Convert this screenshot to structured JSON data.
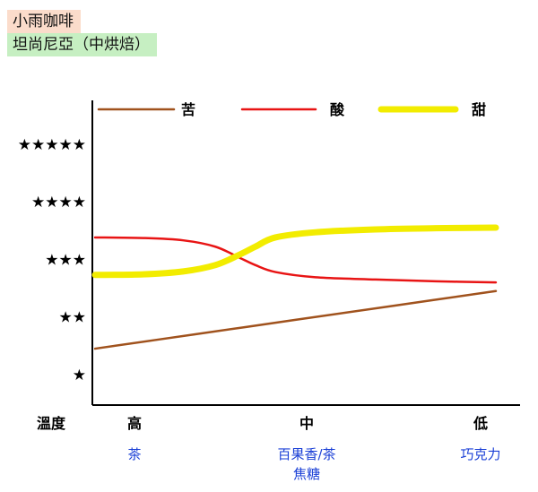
{
  "header": {
    "tag1": {
      "text": "小雨咖啡",
      "bg": "#fbdccb"
    },
    "tag2": {
      "text": "坦尚尼亞（中烘焙）",
      "bg": "#c6efc2"
    }
  },
  "chart_data": {
    "type": "line",
    "title": "",
    "xlabel": "溫度",
    "ylabel": "",
    "categories": [
      "高",
      "中",
      "低"
    ],
    "category_notes": [
      [
        "茶"
      ],
      [
        "百果香/茶",
        "焦糖"
      ],
      [
        "巧克力"
      ]
    ],
    "y_tick_labels": [
      "★",
      "★★",
      "★★★",
      "★★★★",
      "★★★★★"
    ],
    "ylim": [
      0.5,
      5.6
    ],
    "xlim": [
      0,
      1
    ],
    "legend_position": "top",
    "series": [
      {
        "name": "苦",
        "color": "#a0521d",
        "points": [
          [
            0,
            1.45
          ],
          [
            0.25,
            1.7
          ],
          [
            0.5,
            1.95
          ],
          [
            0.75,
            2.2
          ],
          [
            1,
            2.45
          ]
        ]
      },
      {
        "name": "酸",
        "color": "#e81414",
        "points": [
          [
            0,
            3.38
          ],
          [
            0.12,
            3.37
          ],
          [
            0.22,
            3.33
          ],
          [
            0.3,
            3.22
          ],
          [
            0.36,
            3.03
          ],
          [
            0.4,
            2.9
          ],
          [
            0.45,
            2.78
          ],
          [
            0.55,
            2.69
          ],
          [
            0.7,
            2.65
          ],
          [
            0.85,
            2.62
          ],
          [
            1,
            2.6
          ]
        ]
      },
      {
        "name": "甜",
        "color": "#f2ec00",
        "points": [
          [
            0,
            2.73
          ],
          [
            0.12,
            2.74
          ],
          [
            0.22,
            2.79
          ],
          [
            0.3,
            2.9
          ],
          [
            0.36,
            3.08
          ],
          [
            0.4,
            3.22
          ],
          [
            0.45,
            3.38
          ],
          [
            0.55,
            3.47
          ],
          [
            0.7,
            3.52
          ],
          [
            0.85,
            3.54
          ],
          [
            1,
            3.55
          ]
        ]
      }
    ],
    "grid": false
  }
}
